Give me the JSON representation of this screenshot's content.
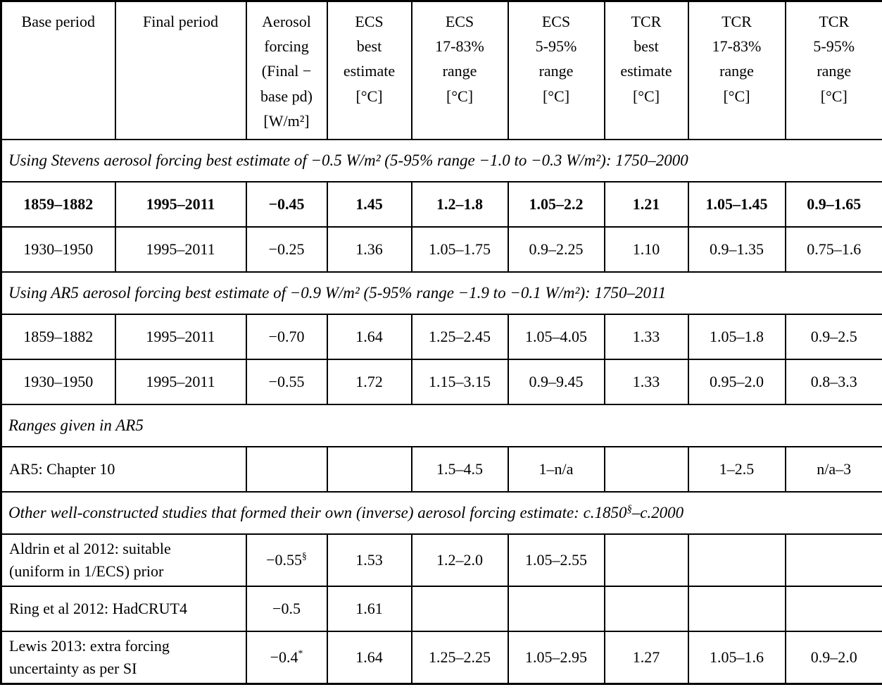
{
  "table": {
    "colors": {
      "border": "#000000",
      "text": "#000000",
      "background": "#ffffff"
    },
    "columns": [
      "Base period",
      "Final period",
      "Aerosol\nforcing\n(Final −\nbase pd)\n[W/m²]",
      "ECS\nbest\nestimate\n[°C]",
      "ECS\n17-83%\nrange\n[°C]",
      "ECS\n5-95%\nrange\n[°C]",
      "TCR\nbest\nestimate\n[°C]",
      "TCR\n17-83%\nrange\n[°C]",
      "TCR\n5-95%\nrange\n[°C]"
    ],
    "rows": [
      {
        "type": "section",
        "text": "Using Stevens aerosol forcing best estimate of −0.5 W/m² (5-95% range −1.0 to −0.3 W/m²): 1750–2000"
      },
      {
        "type": "data",
        "bold": true,
        "cells": [
          "1859–1882",
          "1995–2011",
          "−0.45",
          "1.45",
          "1.2–1.8",
          "1.05–2.2",
          "1.21",
          "1.05–1.45",
          "0.9–1.65"
        ]
      },
      {
        "type": "data",
        "cells": [
          "1930–1950",
          "1995–2011",
          "−0.25",
          "1.36",
          "1.05–1.75",
          "0.9–2.25",
          "1.10",
          "0.9–1.35",
          "0.75–1.6"
        ]
      },
      {
        "type": "section",
        "text": "Using AR5 aerosol forcing best estimate of −0.9 W/m² (5-95% range −1.9 to −0.1 W/m²): 1750–2011"
      },
      {
        "type": "data",
        "cells": [
          "1859–1882",
          "1995–2011",
          "−0.70",
          "1.64",
          "1.25–2.45",
          "1.05–4.05",
          "1.33",
          "1.05–1.8",
          "0.9–2.5"
        ]
      },
      {
        "type": "data",
        "cells": [
          "1930–1950",
          "1995–2011",
          "−0.55",
          "1.72",
          "1.15–3.15",
          "0.9–9.45",
          "1.33",
          "0.95–2.0",
          "0.8–3.3"
        ]
      },
      {
        "type": "section",
        "text": "Ranges given in AR5"
      },
      {
        "type": "data",
        "label_span": 2,
        "cells": [
          "AR5: Chapter 10",
          "",
          "",
          "1.5–4.5",
          "1–n/a",
          "",
          "1–2.5",
          "n/a–3"
        ]
      },
      {
        "type": "section",
        "text": "Other well-constructed studies that formed their own (inverse) aerosol forcing estimate: c.1850^{§}–c.2000"
      },
      {
        "type": "data",
        "label_span": 2,
        "cells": [
          "Aldrin et al 2012: suitable\n(uniform in 1/ECS) prior",
          "−0.55^{§}",
          "1.53",
          "1.2–2.0",
          "1.05–2.55",
          "",
          "",
          ""
        ]
      },
      {
        "type": "data",
        "label_span": 2,
        "cells": [
          "Ring et al 2012: HadCRUT4",
          "−0.5",
          "1.61",
          "",
          "",
          "",
          "",
          ""
        ]
      },
      {
        "type": "data",
        "label_span": 2,
        "cells": [
          "Lewis 2013: extra forcing\nuncertainty as per SI",
          "−0.4^{*}",
          "1.64",
          "1.25–2.25",
          "1.05–2.95",
          "1.27",
          "1.05–1.6",
          "0.9–2.0"
        ]
      }
    ]
  }
}
